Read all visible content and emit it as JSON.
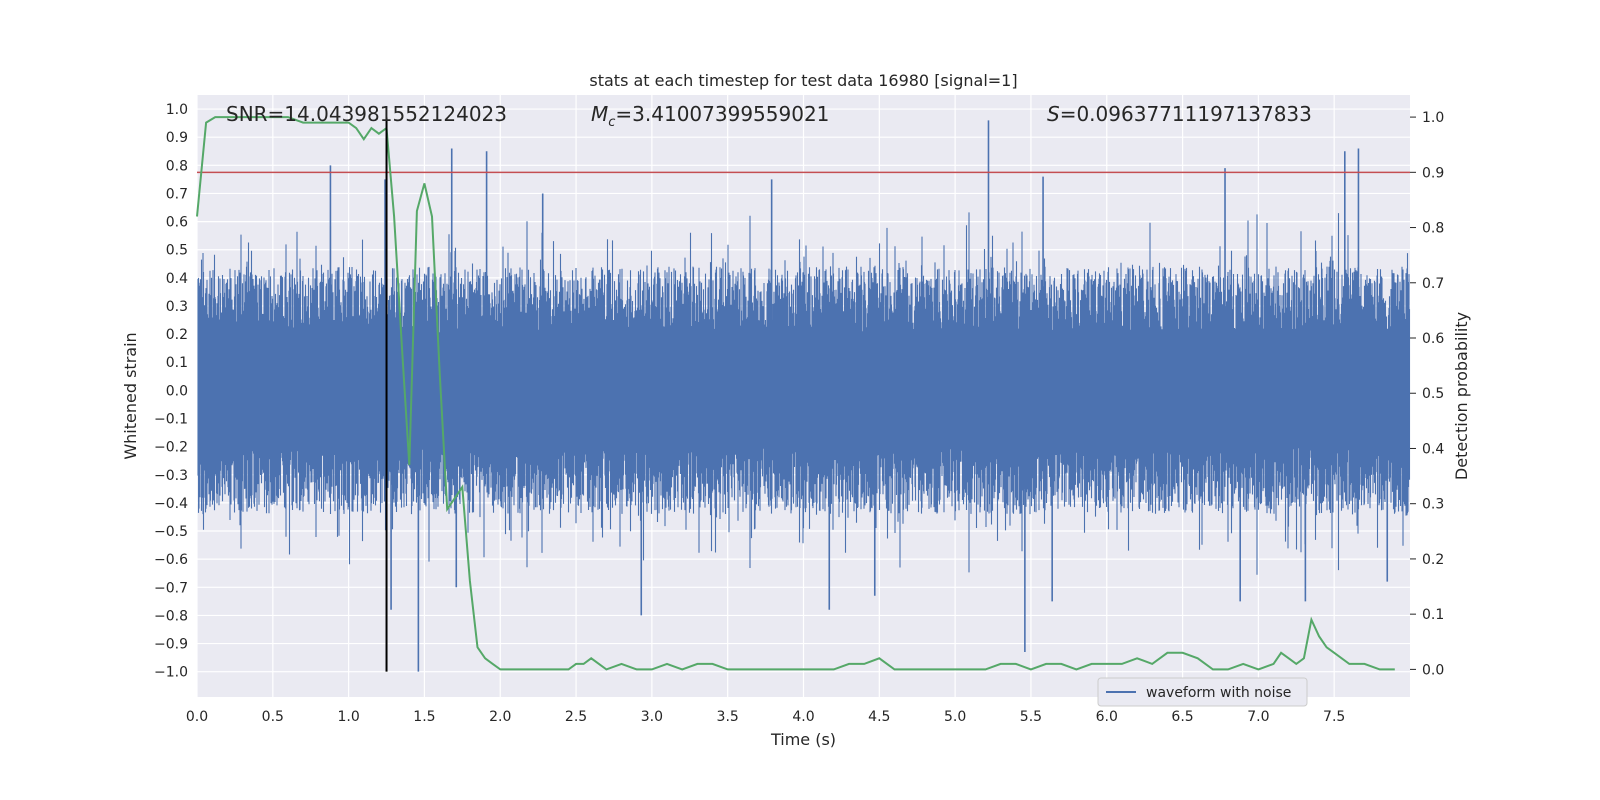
{
  "chart_data": {
    "type": "line",
    "title": "stats at each timestep for test data 16980 [signal=1]",
    "xlabel": "Time (s)",
    "ylabel_left": "Whitened strain",
    "ylabel_right": "Detection probability",
    "xlim": [
      0.0,
      8.0
    ],
    "ylim_left": [
      -1.09,
      1.05
    ],
    "ylim_right": [
      -0.05,
      1.04
    ],
    "xticks": [
      "0.0",
      "0.5",
      "1.0",
      "1.5",
      "2.0",
      "2.5",
      "3.0",
      "3.5",
      "4.0",
      "4.5",
      "5.0",
      "5.5",
      "6.0",
      "6.5",
      "7.0",
      "7.5"
    ],
    "xtick_values": [
      0.0,
      0.5,
      1.0,
      1.5,
      2.0,
      2.5,
      3.0,
      3.5,
      4.0,
      4.5,
      5.0,
      5.5,
      6.0,
      6.5,
      7.0,
      7.5
    ],
    "yticks_left": [
      "1.0",
      "0.9",
      "0.8",
      "0.7",
      "0.6",
      "0.5",
      "0.4",
      "0.3",
      "0.2",
      "0.1",
      "0.0",
      "−0.1",
      "−0.2",
      "−0.3",
      "−0.4",
      "−0.5",
      "−0.6",
      "−0.7",
      "−0.8",
      "−0.9",
      "−1.0"
    ],
    "ytick_values_left": [
      1.0,
      0.9,
      0.8,
      0.7,
      0.6,
      0.5,
      0.4,
      0.3,
      0.2,
      0.1,
      0.0,
      -0.1,
      -0.2,
      -0.3,
      -0.4,
      -0.5,
      -0.6,
      -0.7,
      -0.8,
      -0.9,
      -1.0
    ],
    "yticks_right": [
      "1.0",
      "0.9",
      "0.8",
      "0.7",
      "0.6",
      "0.5",
      "0.4",
      "0.3",
      "0.2",
      "0.1",
      "0.0"
    ],
    "ytick_values_right": [
      1.0,
      0.9,
      0.8,
      0.7,
      0.6,
      0.5,
      0.4,
      0.3,
      0.2,
      0.1,
      0.0
    ],
    "annotations": {
      "snr": "SNR=14.043981552124023",
      "mc_symbol": "M",
      "mc_sub": "c",
      "mc_value": "=3.41007399559021",
      "s_symbol": "S",
      "s_value": "=0.09637711197137833"
    },
    "legend": {
      "label": "waveform with noise",
      "placement": "lower-right"
    },
    "threshold_right": 0.9,
    "event_time": 1.25,
    "event_range_left": [
      -1.0,
      0.97
    ],
    "series": [
      {
        "name": "waveform with noise",
        "axis": "left",
        "color": "#4c72b0",
        "style": "dense-noise",
        "seed": 16980,
        "spikes": [
          [
            0.88,
            0.8
          ],
          [
            1.24,
            0.75
          ],
          [
            1.28,
            -0.78
          ],
          [
            1.46,
            -1.0
          ],
          [
            1.68,
            0.86
          ],
          [
            1.71,
            -0.7
          ],
          [
            1.91,
            0.85
          ],
          [
            2.28,
            0.7
          ],
          [
            2.93,
            -0.8
          ],
          [
            3.79,
            0.75
          ],
          [
            4.17,
            -0.78
          ],
          [
            4.47,
            -0.73
          ],
          [
            5.22,
            0.96
          ],
          [
            5.46,
            -0.93
          ],
          [
            5.58,
            0.76
          ],
          [
            5.64,
            -0.75
          ],
          [
            6.78,
            0.79
          ],
          [
            6.88,
            -0.75
          ],
          [
            7.31,
            -0.75
          ],
          [
            7.57,
            0.85
          ],
          [
            7.66,
            0.86
          ],
          [
            7.85,
            -0.68
          ]
        ]
      },
      {
        "name": "detection probability",
        "axis": "right",
        "color": "#55a868",
        "x": [
          0.0,
          0.06,
          0.12,
          0.2,
          0.3,
          0.4,
          0.5,
          0.6,
          0.7,
          0.8,
          0.9,
          1.0,
          1.05,
          1.1,
          1.15,
          1.2,
          1.25,
          1.3,
          1.35,
          1.4,
          1.45,
          1.5,
          1.55,
          1.6,
          1.65,
          1.7,
          1.75,
          1.8,
          1.85,
          1.9,
          1.95,
          2.0,
          2.1,
          2.2,
          2.3,
          2.4,
          2.45,
          2.5,
          2.55,
          2.6,
          2.7,
          2.8,
          2.9,
          3.0,
          3.1,
          3.2,
          3.3,
          3.4,
          3.5,
          3.6,
          3.7,
          3.8,
          3.9,
          4.0,
          4.1,
          4.2,
          4.3,
          4.4,
          4.5,
          4.6,
          4.7,
          4.8,
          4.9,
          5.0,
          5.1,
          5.2,
          5.3,
          5.4,
          5.5,
          5.6,
          5.7,
          5.8,
          5.9,
          6.0,
          6.1,
          6.2,
          6.3,
          6.4,
          6.5,
          6.6,
          6.7,
          6.8,
          6.9,
          7.0,
          7.1,
          7.15,
          7.2,
          7.25,
          7.3,
          7.35,
          7.4,
          7.45,
          7.5,
          7.6,
          7.7,
          7.8,
          7.9
        ],
        "y": [
          0.82,
          0.99,
          1.0,
          1.0,
          1.0,
          1.0,
          1.0,
          1.0,
          0.99,
          0.99,
          0.99,
          0.99,
          0.98,
          0.96,
          0.98,
          0.97,
          0.98,
          0.82,
          0.59,
          0.37,
          0.83,
          0.88,
          0.82,
          0.54,
          0.29,
          0.31,
          0.33,
          0.16,
          0.04,
          0.02,
          0.01,
          0.0,
          0.0,
          0.0,
          0.0,
          0.0,
          0.0,
          0.01,
          0.01,
          0.02,
          0.0,
          0.01,
          0.0,
          0.0,
          0.01,
          0.0,
          0.01,
          0.01,
          0.0,
          0.0,
          0.0,
          0.0,
          0.0,
          0.0,
          0.0,
          0.0,
          0.01,
          0.01,
          0.02,
          0.0,
          0.0,
          0.0,
          0.0,
          0.0,
          0.0,
          0.0,
          0.01,
          0.01,
          0.0,
          0.01,
          0.01,
          0.0,
          0.01,
          0.01,
          0.01,
          0.02,
          0.01,
          0.03,
          0.03,
          0.02,
          0.0,
          0.0,
          0.01,
          0.0,
          0.01,
          0.03,
          0.02,
          0.01,
          0.02,
          0.09,
          0.06,
          0.04,
          0.03,
          0.01,
          0.01,
          0.0,
          0.0
        ]
      }
    ],
    "colors": {
      "plot_bg": "#eaeaf2",
      "grid": "#ffffff",
      "threshold_line": "#c44e52",
      "event_line": "#000000"
    }
  }
}
